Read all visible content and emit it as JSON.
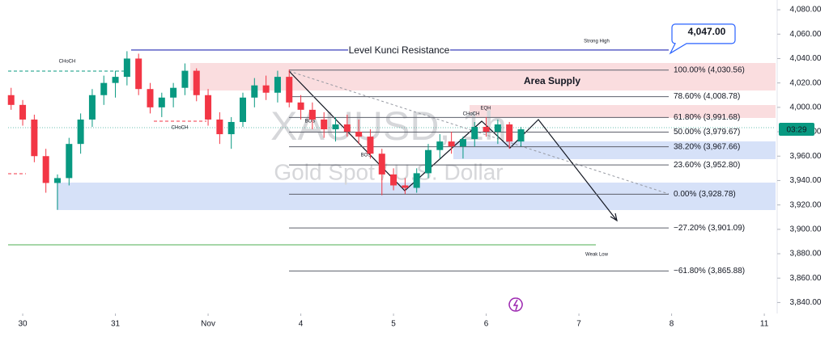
{
  "chart_data": {
    "type": "candlestick",
    "symbol_title": "XAUUSD, 1h",
    "symbol_subtitle": "Gold Spot / U.S. Dollar",
    "countdown": "03:29",
    "up_color": "#089981",
    "down_color": "#f23645",
    "x": [
      -0.125,
      0,
      0.125,
      0.25,
      0.375,
      0.5,
      0.625,
      0.75,
      0.875,
      1,
      1.125,
      1.25,
      1.375,
      1.5,
      1.625,
      1.75,
      1.875,
      2,
      2.125,
      2.25,
      2.375,
      2.5,
      2.625,
      2.75,
      2.875,
      3,
      3.125,
      3.25,
      3.375,
      3.5,
      3.625,
      3.75,
      3.875,
      4,
      4.125,
      4.25,
      4.375,
      4.5,
      4.625,
      4.75,
      4.875,
      5,
      5.125,
      5.25,
      5.375
    ],
    "open": [
      4010,
      4002,
      3990,
      3960,
      3938,
      3942,
      3970,
      3990,
      4010,
      4020,
      4025,
      4040,
      4015,
      4000,
      4008,
      4016,
      4030,
      4010,
      3990,
      3978,
      3988,
      4008,
      4018,
      4012,
      4025,
      4004,
      3998,
      3990,
      3982,
      3986,
      3980,
      3976,
      3962,
      3945,
      3936,
      3934,
      3946,
      3965,
      3972,
      3968,
      3974,
      3984,
      3980,
      3986,
      3972
    ],
    "high": [
      4016,
      4006,
      3994,
      3966,
      3945,
      3975,
      3995,
      4015,
      4026,
      4030,
      4046,
      4044,
      4020,
      4012,
      4020,
      4036,
      4032,
      4015,
      3996,
      3992,
      4012,
      4024,
      4026,
      4030,
      4031,
      4010,
      4004,
      3996,
      3992,
      3994,
      3990,
      3982,
      3966,
      3950,
      3942,
      3950,
      3970,
      3978,
      3980,
      3976,
      3988,
      3992,
      3990,
      3988,
      3984
    ],
    "low": [
      3998,
      3985,
      3955,
      3930,
      3916,
      3936,
      3962,
      3984,
      4002,
      4008,
      4018,
      4010,
      3995,
      3992,
      4000,
      4010,
      4005,
      3985,
      3970,
      3966,
      3984,
      4000,
      4006,
      4004,
      4000,
      3990,
      3982,
      3975,
      3972,
      3976,
      3970,
      3958,
      3928,
      3932,
      3929,
      3930,
      3942,
      3958,
      3962,
      3958,
      3968,
      3976,
      3970,
      3966,
      3968
    ],
    "close": [
      4002,
      3990,
      3960,
      3938,
      3942,
      3970,
      3990,
      4010,
      4020,
      4025,
      4040,
      4015,
      4000,
      4008,
      4016,
      4030,
      4010,
      3990,
      3978,
      3988,
      4008,
      4018,
      4012,
      4025,
      4004,
      3998,
      3990,
      3982,
      3986,
      3980,
      3976,
      3962,
      3945,
      3936,
      3934,
      3946,
      3965,
      3972,
      3968,
      3974,
      3984,
      3980,
      3986,
      3972,
      3982
    ],
    "xlim": [
      -0.245,
      8.139
    ],
    "ylim": [
      3831,
      4088
    ],
    "xticks": [
      {
        "value": 0,
        "label": "30"
      },
      {
        "value": 1,
        "label": "31"
      },
      {
        "value": 2,
        "label": "Nov"
      },
      {
        "value": 3,
        "label": "4"
      },
      {
        "value": 4,
        "label": "5"
      },
      {
        "value": 5,
        "label": "6"
      },
      {
        "value": 6,
        "label": "7"
      },
      {
        "value": 7,
        "label": "8"
      },
      {
        "value": 8,
        "label": "11"
      }
    ],
    "yticks": [
      {
        "value": 4080,
        "label": "4,080.00"
      },
      {
        "value": 4060,
        "label": "4,060.00"
      },
      {
        "value": 4040,
        "label": "4,040.00"
      },
      {
        "value": 4020,
        "label": "4,020.00"
      },
      {
        "value": 4000,
        "label": "4,000.00"
      },
      {
        "value": 3980,
        "label": "3,980.00"
      },
      {
        "value": 3960,
        "label": "3,960.00"
      },
      {
        "value": 3940,
        "label": "3,940.00"
      },
      {
        "value": 3920,
        "label": "3,920.00"
      },
      {
        "value": 3900,
        "label": "3,900.00"
      },
      {
        "value": 3880,
        "label": "3,880.00"
      },
      {
        "value": 3860,
        "label": "3,860.00"
      },
      {
        "value": 3840,
        "label": "3,840.00"
      }
    ],
    "resistance": {
      "label": "Level Kunci Resistance",
      "value": 4047,
      "value_label": "4,047.00"
    },
    "zone_label": "Area Supply",
    "fib_levels": [
      {
        "value": 4030.56,
        "label": "100.00% (4,030.56)"
      },
      {
        "value": 4008.78,
        "label": "78.60% (4,008.78)"
      },
      {
        "value": 3991.68,
        "label": "61.80% (3,991.68)"
      },
      {
        "value": 3979.67,
        "label": "50.00% (3,979.67)"
      },
      {
        "value": 3967.66,
        "label": "38.20% (3,967.66)"
      },
      {
        "value": 3952.8,
        "label": "23.60% (3,952.80)"
      },
      {
        "value": 3928.78,
        "label": "0.00% (3,928.78)"
      },
      {
        "value": 3901.09,
        "label": "−27.20% (3,901.09)"
      },
      {
        "value": 3865.88,
        "label": "−61.80% (3,865.88)"
      }
    ],
    "annotations": [
      "CHoCH",
      "CHoCH",
      "BOS",
      "BOS",
      "CHoCH",
      "EQH",
      "Strong High",
      "Weak Low"
    ]
  }
}
